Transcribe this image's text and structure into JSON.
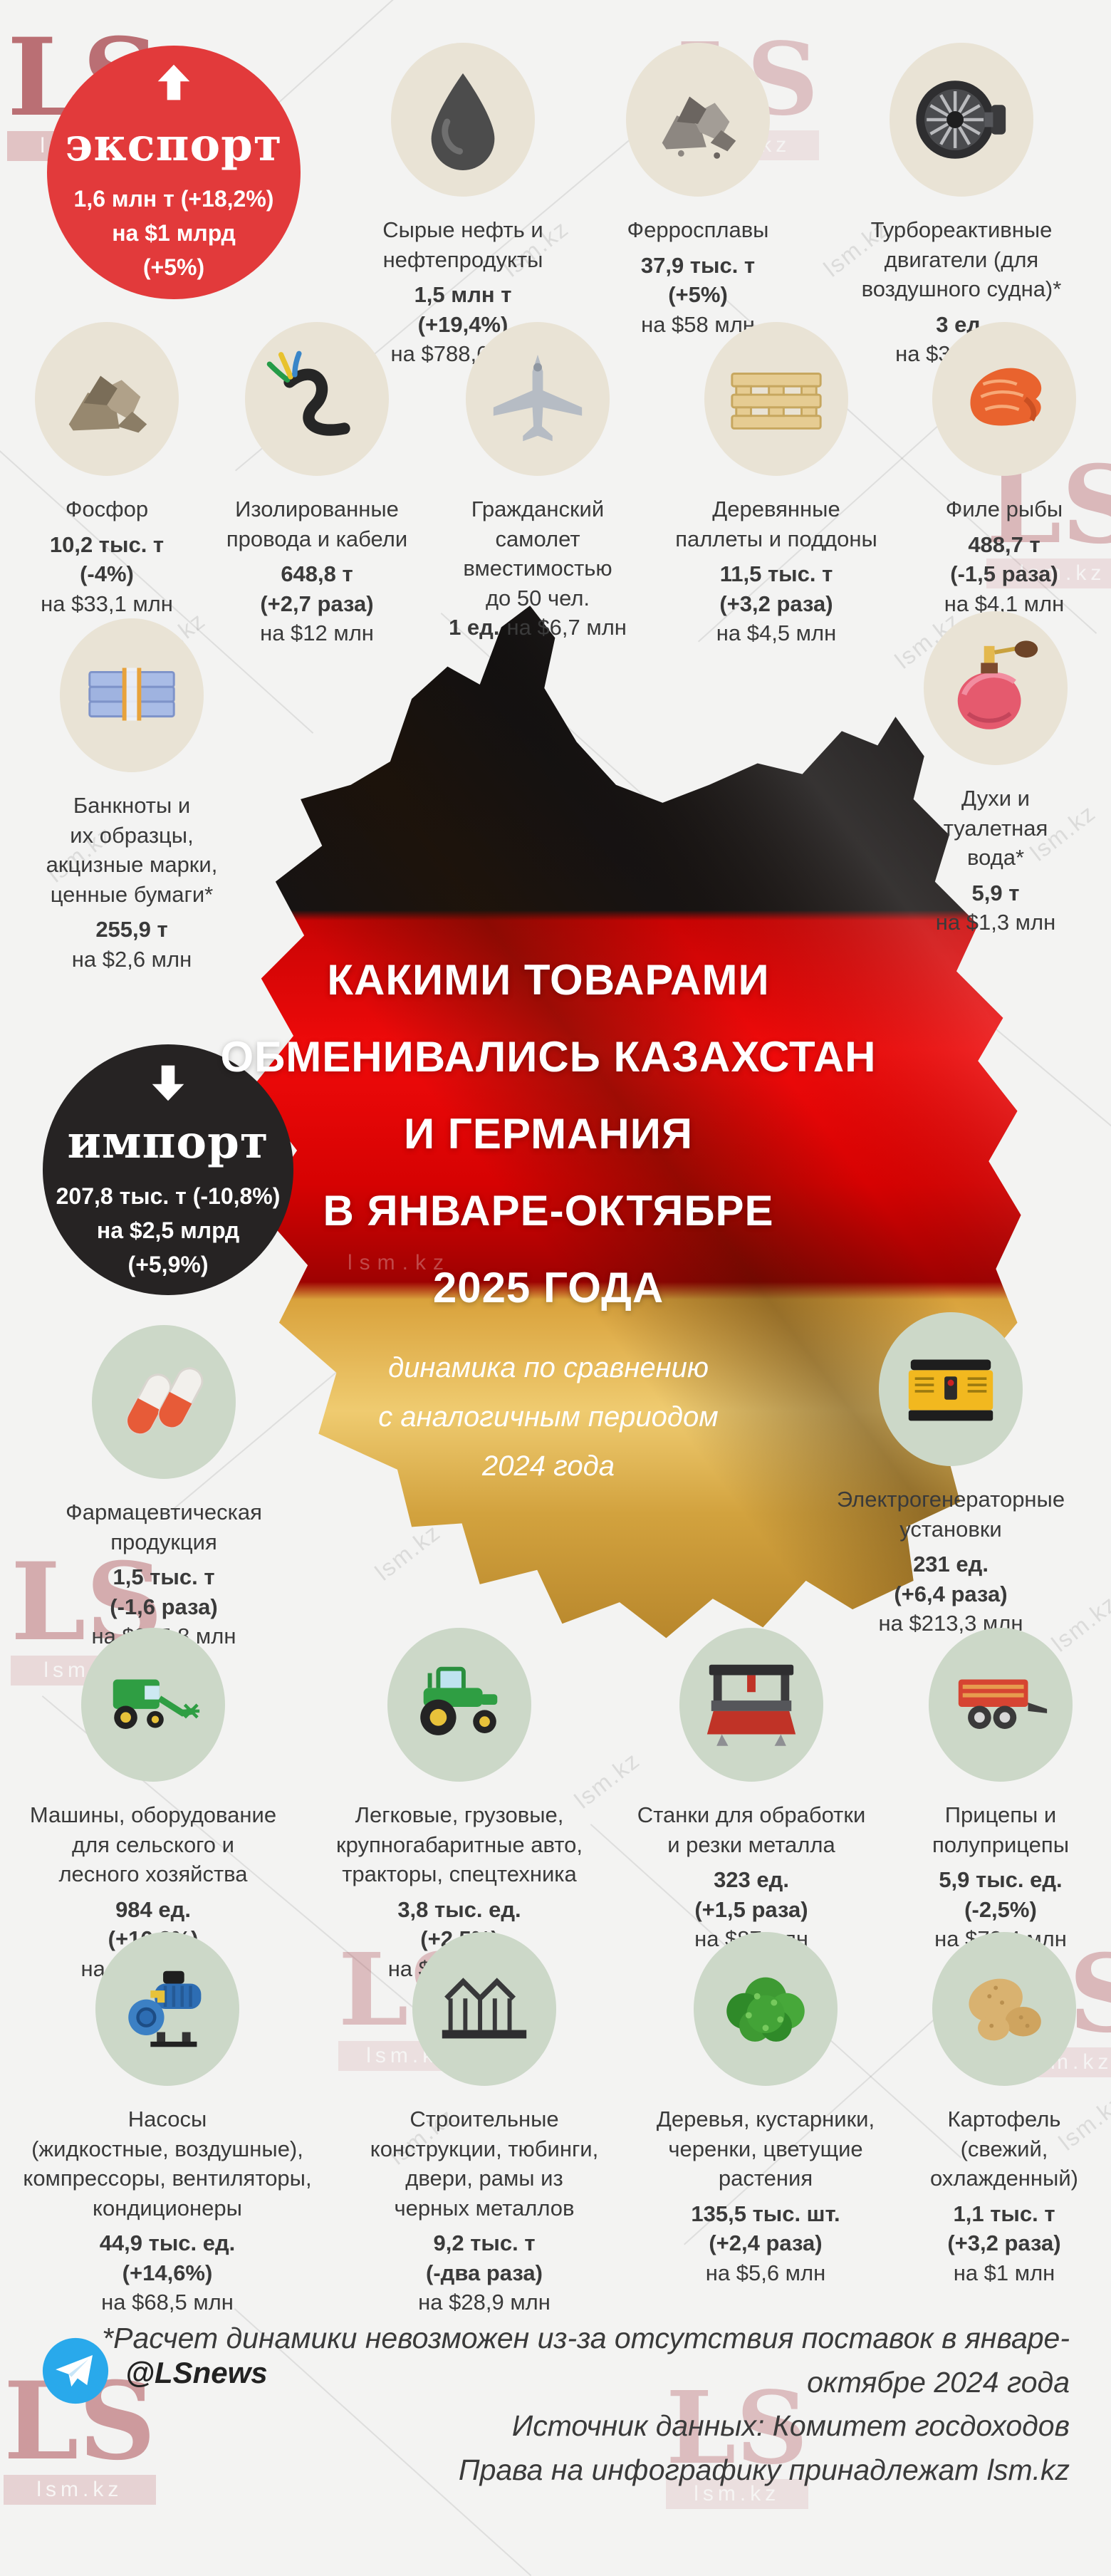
{
  "watermark": {
    "ls": "LS",
    "site": "lsm.kz"
  },
  "export_circle": {
    "label": "экспорт",
    "lines": [
      "1,6 млн т (+18,2%)",
      "на $1 млрд",
      "(+5%)"
    ]
  },
  "import_circle": {
    "label": "импорт",
    "lines": [
      "207,8 тыс. т (-10,8%)",
      "на $2,5 млрд",
      "(+5,9%)"
    ]
  },
  "title": {
    "lines": [
      "КАКИМИ ТОВАРАМИ",
      "ОБМЕНИВАЛИСЬ КАЗАХСТАН",
      "И ГЕРМАНИЯ",
      "В ЯНВАРЕ-ОКТЯБРЕ",
      "2025 ГОДА"
    ],
    "subtitle_lines": [
      "динамика по сравнению",
      "с аналогичным периодом",
      "2024 года"
    ]
  },
  "export_items_top": [
    {
      "icon": "oil-drop",
      "name": "Сырые нефть и\nнефтепродукты",
      "qty": "1,5 млн т",
      "change": "(+19,4%)",
      "value": "на $788,6 млн"
    },
    {
      "icon": "ore-rocks",
      "name": "Ферросплавы",
      "qty": "37,9 тыс. т",
      "change": "(+5%)",
      "value": "на $58 млн"
    },
    {
      "icon": "jet-engine",
      "name": "Турбореактивные\nдвигатели (для\nвоздушного судна)*",
      "qty": "3 ед.",
      "value": "на $38,7 млн"
    }
  ],
  "export_items_mid": [
    {
      "icon": "phosphorus-rocks",
      "name": "Фосфор",
      "qty": "10,2 тыс. т",
      "change": "(-4%)",
      "value": "на $33,1 млн"
    },
    {
      "icon": "cable",
      "name": "Изолированные\nпровода и кабели",
      "qty": "648,8 т",
      "change": "(+2,7 раза)",
      "value": "на $12 млн"
    },
    {
      "icon": "airplane",
      "name": "Гражданский\nсамолет\nвместимостью\nдо 50 чел.",
      "value_bold": "1 ед.",
      "value": "на $6,7 млн"
    },
    {
      "icon": "pallet",
      "name": "Деревянные\nпаллеты и поддоны",
      "qty": "11,5 тыс. т",
      "change": "(+3,2 раза)",
      "value": "на $4,5 млн"
    },
    {
      "icon": "fish-fillet",
      "name": "Филе рыбы",
      "qty": "488,7 т",
      "change": "(-1,5 раза)",
      "value": "на $4,1 млн"
    }
  ],
  "banknotes_item": {
    "icon": "banknotes",
    "name": "Банкноты и\nих образцы,\nакцизные марки,\nценные бумаги*",
    "qty": "255,9 т",
    "value": "на $2,6 млн"
  },
  "perfume_item": {
    "icon": "perfume-bottle",
    "name": "Духи и\nтуалетная\nвода*",
    "qty": "5,9 т",
    "value": "на $1,3 млн"
  },
  "pharma_item": {
    "icon": "pills",
    "name": "Фармацевтическая\nпродукция",
    "qty": "1,5 тыс. т",
    "change": "(-1,6 раза)",
    "value": "на $345,8 млн"
  },
  "generator_item": {
    "icon": "generator",
    "name": "Электрогенераторные\nустановки",
    "qty": "231 ед.",
    "change": "(+6,4 раза)",
    "value": "на $213,3 млн"
  },
  "import_items_mid": [
    {
      "icon": "combine-harvester",
      "name": "Машины, оборудование\nдля сельского и\nлесного хозяйства",
      "qty": "984 ед.",
      "change": "(+16,3%)",
      "value": "на $128,3 млн"
    },
    {
      "icon": "tractor",
      "name": "Легковые, грузовые,\nкрупногабаритные авто,\nтракторы, спецтехника",
      "qty": "3,8 тыс. ед.",
      "change": "(+2,5%)",
      "value": "на $112,4 млн"
    },
    {
      "icon": "metal-machine",
      "name": "Станки для обработки\nи резки металла",
      "qty": "323 ед.",
      "change": "(+1,5 раза)",
      "value": "на $87 млн"
    },
    {
      "icon": "trailer",
      "name": "Прицепы и\nполуприцепы",
      "qty": "5,9 тыс. ед.",
      "change": "(-2,5%)",
      "value": "на $72,4 млн"
    }
  ],
  "import_items_bottom": [
    {
      "icon": "pump",
      "name": "Насосы\n(жидкостные, воздушные),\nкомпрессоры, вентиляторы,\nкондиционеры",
      "qty": "44,9 тыс. ед.",
      "change": "(+14,6%)",
      "value": "на $68,5 млн"
    },
    {
      "icon": "steel-structures",
      "name": "Строительные\nконструкции, тюбинги,\nдвери, рамы из\nчерных металлов",
      "qty": "9,2 тыс. т",
      "change": "(-два раза)",
      "value": "на $28,9 млн"
    },
    {
      "icon": "bush",
      "name": "Деревья, кустарники,\nчеренки, цветущие\nрастения",
      "qty": "135,5 тыс. шт.",
      "change": "(+2,4 раза)",
      "value": "на $5,6 млн"
    },
    {
      "icon": "potatoes",
      "name": "Картофель\n(свежий,\nохлажденный)",
      "qty": "1,1 тыс. т",
      "change": "(+3,2 раза)",
      "value": "на $1 млн"
    }
  ],
  "footer": {
    "note": "*Расчет динамики невозможен из-за отсутствия поставок в январе-октябре 2024 года",
    "source": "Источник данных: Комитет госдоходов",
    "rights": "Права на инфографику принадлежат lsm.kz",
    "telegram_handle": "@LSnews"
  },
  "colors": {
    "export_red": "#e23a3b",
    "import_black": "#262323",
    "flag_black": "#121010",
    "flag_red": "#d60202",
    "flag_gold": "#e3b254",
    "beige_circle": "#e9e3d5",
    "sage_circle": "#ccd8c8",
    "telegram_blue": "#29a9eb"
  }
}
